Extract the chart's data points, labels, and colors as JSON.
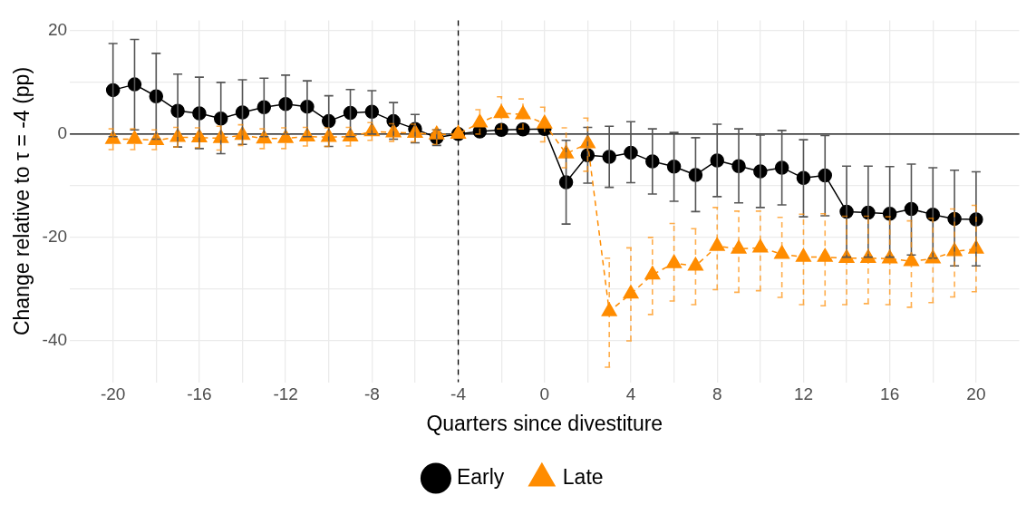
{
  "chart_data": {
    "type": "line",
    "xlabel": "Quarters since divestiture",
    "ylabel": "Change relative to τ = -4 (pp)",
    "xlim": [
      -22,
      22
    ],
    "ylim": [
      -48,
      22
    ],
    "xticks": [
      -20,
      {
        "value": -18,
        "label": null
      },
      -16,
      {
        "value": -14,
        "label": null
      },
      -12,
      {
        "value": -10,
        "label": null
      },
      -8,
      {
        "value": -6,
        "label": null
      },
      -4,
      {
        "value": -2,
        "label": null
      },
      0,
      {
        "value": 2,
        "label": null
      },
      4,
      {
        "value": 6,
        "label": null
      },
      8,
      {
        "value": 10,
        "label": null
      },
      12,
      {
        "value": 14,
        "label": null
      },
      16,
      {
        "value": 18,
        "label": null
      },
      20
    ],
    "yticks": [
      -40,
      {
        "value": -30,
        "label": null
      },
      -20,
      {
        "value": -10,
        "label": null
      },
      0,
      {
        "value": 10,
        "label": null
      },
      20
    ],
    "grid": true,
    "legend": "bottom",
    "ref_lines": [
      {
        "axis": "y",
        "value": 0,
        "color": "#000000",
        "line_style": "solid"
      },
      {
        "axis": "x",
        "value": -4,
        "color": "#000000",
        "line_style": "dashed"
      }
    ],
    "x": [
      -20,
      -19,
      -18,
      -17,
      -16,
      -15,
      -14,
      -13,
      -12,
      -11,
      -10,
      -9,
      -8,
      -7,
      -6,
      -5,
      -4,
      -3,
      -2,
      -1,
      0,
      1,
      2,
      3,
      4,
      5,
      6,
      7,
      8,
      9,
      10,
      11,
      12,
      13,
      14,
      15,
      16,
      17,
      18,
      19,
      20
    ],
    "series": [
      {
        "name": "Early",
        "color": "#000000",
        "marker": "circle",
        "line_style": "solid",
        "values": [
          8.5,
          9.6,
          7.3,
          4.5,
          4.0,
          3.0,
          4.2,
          5.2,
          5.8,
          5.3,
          2.5,
          4.1,
          4.3,
          2.5,
          1.0,
          -0.7,
          0,
          0.5,
          0.8,
          0.9,
          1.0,
          -9.3,
          -4.1,
          -4.4,
          -3.6,
          -5.3,
          -6.3,
          -7.9,
          -5.1,
          -6.2,
          -7.2,
          -6.5,
          -8.5,
          -8.0,
          -15.0,
          -15.2,
          -15.4,
          -14.5,
          -15.6,
          -16.4,
          -16.5
        ],
        "errors": [
          [
            -0.5,
            17.5
          ],
          [
            0.8,
            18.3
          ],
          [
            -1,
            15.6
          ],
          [
            -2.5,
            11.6
          ],
          [
            -2.8,
            11
          ],
          [
            -3.8,
            10
          ],
          [
            -2,
            10.5
          ],
          [
            -0.5,
            10.8
          ],
          [
            0,
            11.4
          ],
          [
            -0.5,
            10.3
          ],
          [
            -2.4,
            7.4
          ],
          [
            -0.5,
            8.6
          ],
          [
            0,
            8.4
          ],
          [
            -1,
            6.1
          ],
          [
            -1.7,
            3.8
          ],
          [
            -2.2,
            0.8
          ],
          null,
          null,
          null,
          null,
          null,
          [
            -17.4,
            -1.2
          ],
          [
            -9.5,
            1.3
          ],
          [
            -10.3,
            1.5
          ],
          [
            -9.4,
            2.4
          ],
          [
            -11.6,
            1.0
          ],
          [
            -13,
            0.3
          ],
          [
            -15,
            -0.7
          ],
          [
            -12.1,
            1.9
          ],
          [
            -13.3,
            1.0
          ],
          [
            -14.2,
            -0.2
          ],
          [
            -13.7,
            0.7
          ],
          [
            -16,
            -1.1
          ],
          [
            -15.8,
            -0.3
          ],
          [
            -23.8,
            -6.2
          ],
          [
            -23.8,
            -6.2
          ],
          [
            -23.8,
            -6.3
          ],
          [
            -23.4,
            -5.8
          ],
          [
            -24,
            -6.5
          ],
          [
            -25.5,
            -7
          ],
          [
            -25.5,
            -7.3
          ]
        ]
      },
      {
        "name": "Late",
        "color": "#ff8c00",
        "marker": "triangle",
        "line_style": "dashed",
        "values": [
          -1.0,
          -1.0,
          -1.2,
          -0.6,
          -0.7,
          -0.8,
          -0.2,
          -0.9,
          -0.8,
          -0.5,
          -0.6,
          -0.5,
          0.5,
          0.3,
          0.2,
          -0.1,
          0,
          2.2,
          4.0,
          3.8,
          2.0,
          -3.8,
          -1.8,
          -34.3,
          -30.9,
          -27.2,
          -25.0,
          -25.5,
          -21.7,
          -22.2,
          -22.0,
          -23.2,
          -23.8,
          -23.8,
          -24.0,
          -24.0,
          -24.1,
          -24.6,
          -24.1,
          -22.7,
          -22.2
        ],
        "errors": [
          [
            -3,
            1
          ],
          [
            -3,
            1
          ],
          [
            -3,
            0.8
          ],
          [
            -2.5,
            1.3
          ],
          [
            -2.6,
            1.2
          ],
          [
            -3.1,
            1.5
          ],
          [
            -2.2,
            1.8
          ],
          [
            -2.8,
            1
          ],
          [
            -2.8,
            1.2
          ],
          [
            -2.3,
            1.3
          ],
          [
            -2.4,
            1.2
          ],
          [
            -2.3,
            1.3
          ],
          [
            -1.2,
            2.2
          ],
          [
            -1.4,
            2
          ],
          [
            -1.5,
            1.9
          ],
          [
            -2,
            0.8
          ],
          null,
          [
            0,
            4.7
          ],
          [
            1,
            7.2
          ],
          [
            1,
            6.8
          ],
          [
            -1.5,
            5.2
          ],
          [
            -6.5,
            1.2
          ],
          [
            -7.2,
            3.1
          ],
          [
            -45.1,
            -24
          ],
          [
            -40,
            -22
          ],
          [
            -34.9,
            -20
          ],
          [
            -32.3,
            -17.3
          ],
          [
            -33,
            -18.3
          ],
          [
            -30.1,
            -14.2
          ],
          [
            -30.6,
            -14.9
          ],
          [
            -30.3,
            -14.9
          ],
          [
            -31.6,
            -16.1
          ],
          [
            -33,
            -15.5
          ],
          [
            -33.2,
            -15.4
          ],
          [
            -33,
            -15.9
          ],
          [
            -32.8,
            -15.9
          ],
          [
            -33,
            -16
          ],
          [
            -33.5,
            -16.8
          ],
          [
            -32.6,
            -16.3
          ],
          [
            -31.5,
            -14.5
          ],
          [
            -30.5,
            -13.8
          ]
        ]
      }
    ]
  }
}
